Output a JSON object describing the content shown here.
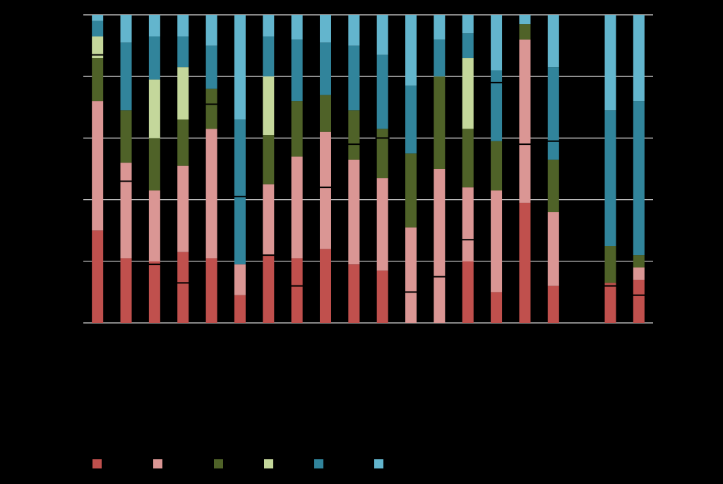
{
  "chart_data": {
    "type": "bar",
    "stacked": true,
    "ylim": [
      0,
      100
    ],
    "grid": true,
    "legend_position": "bottom",
    "categories": [
      "",
      "",
      "",
      "",
      "",
      "",
      "",
      "",
      "",
      "",
      "",
      "",
      "",
      "",
      "",
      "",
      "",
      "",
      "",
      ""
    ],
    "series": [
      {
        "color": "#c0504d",
        "values": [
          30,
          21,
          20,
          23,
          21,
          9,
          22,
          21,
          24,
          19,
          17,
          0,
          0,
          20,
          10,
          39,
          12,
          null,
          13,
          14
        ]
      },
      {
        "color": "#da9694",
        "values": [
          42,
          31,
          23,
          28,
          42,
          10,
          23,
          33,
          38,
          34,
          30,
          31,
          50,
          24,
          33,
          53,
          24,
          null,
          0,
          4
        ]
      },
      {
        "color": "#4f6228",
        "values": [
          14,
          17,
          17,
          15,
          13,
          0,
          16,
          18,
          12,
          16,
          16,
          24,
          30,
          19,
          16,
          5,
          17,
          null,
          12,
          4
        ]
      },
      {
        "color": "#c4d79b",
        "values": [
          7,
          0,
          19,
          17,
          0,
          0,
          19,
          0,
          0,
          0,
          0,
          0,
          0,
          23,
          0,
          0,
          0,
          null,
          0,
          0
        ]
      },
      {
        "color": "#31849b",
        "values": [
          5,
          22,
          14,
          10,
          14,
          47,
          13,
          20,
          17,
          21,
          24,
          22,
          12,
          8,
          23,
          0,
          30,
          null,
          44,
          50
        ]
      },
      {
        "color": "#63b5cd",
        "values": [
          2,
          9,
          7,
          7,
          10,
          34,
          7,
          8,
          9,
          10,
          13,
          23,
          8,
          6,
          18,
          3,
          17,
          null,
          31,
          28
        ]
      }
    ],
    "markers": [
      87,
      46,
      19,
      13,
      71,
      41,
      22,
      12,
      44,
      58,
      60,
      10,
      15,
      27,
      78,
      58,
      59,
      null,
      12,
      9
    ]
  }
}
